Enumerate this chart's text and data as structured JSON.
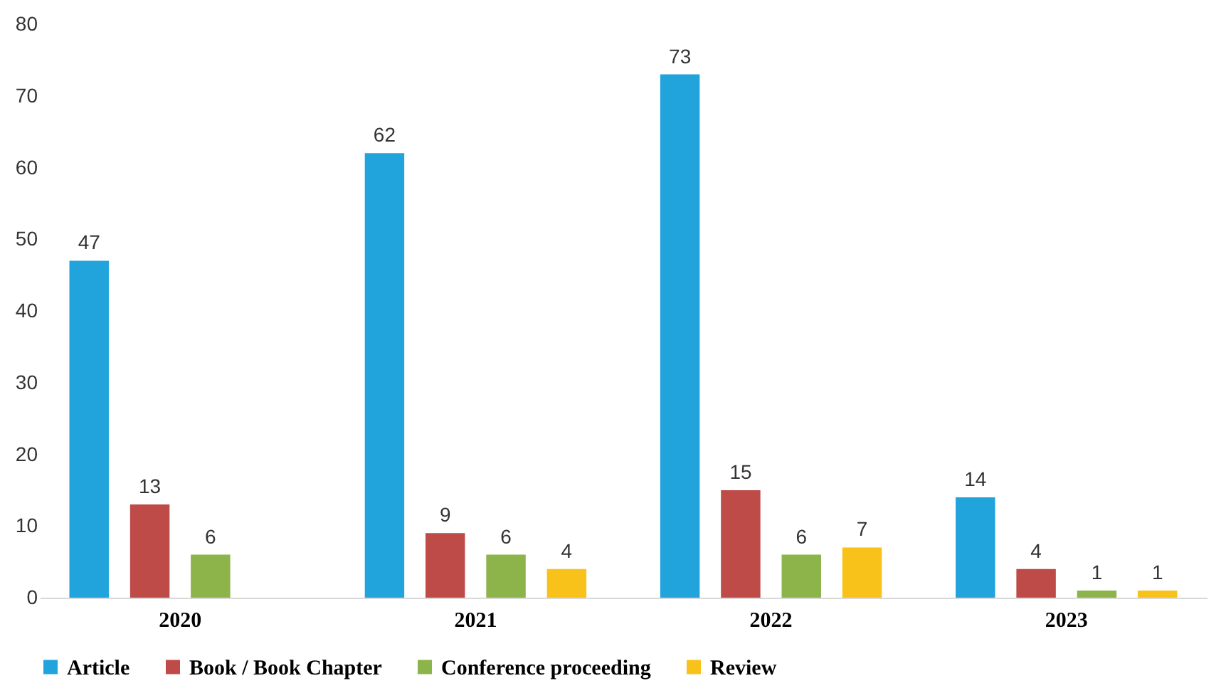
{
  "chart_data": {
    "type": "bar",
    "categories": [
      "2020",
      "2021",
      "2022",
      "2023"
    ],
    "series": [
      {
        "name": "Article",
        "color": "#21a3dc",
        "values": [
          47,
          62,
          73,
          14
        ]
      },
      {
        "name": "Book / Book Chapter",
        "color": "#be4b48",
        "values": [
          13,
          9,
          15,
          4
        ]
      },
      {
        "name": "Conference proceeding",
        "color": "#8cb44a",
        "values": [
          6,
          6,
          6,
          1
        ]
      },
      {
        "name": "Review",
        "color": "#f8c21a",
        "values": [
          null,
          4,
          7,
          1
        ]
      }
    ],
    "ylim": [
      0,
      80
    ],
    "yticks": [
      0,
      10,
      20,
      30,
      40,
      50,
      60,
      70,
      80
    ],
    "grid": false,
    "legend": "bottom",
    "data_labels": true
  }
}
